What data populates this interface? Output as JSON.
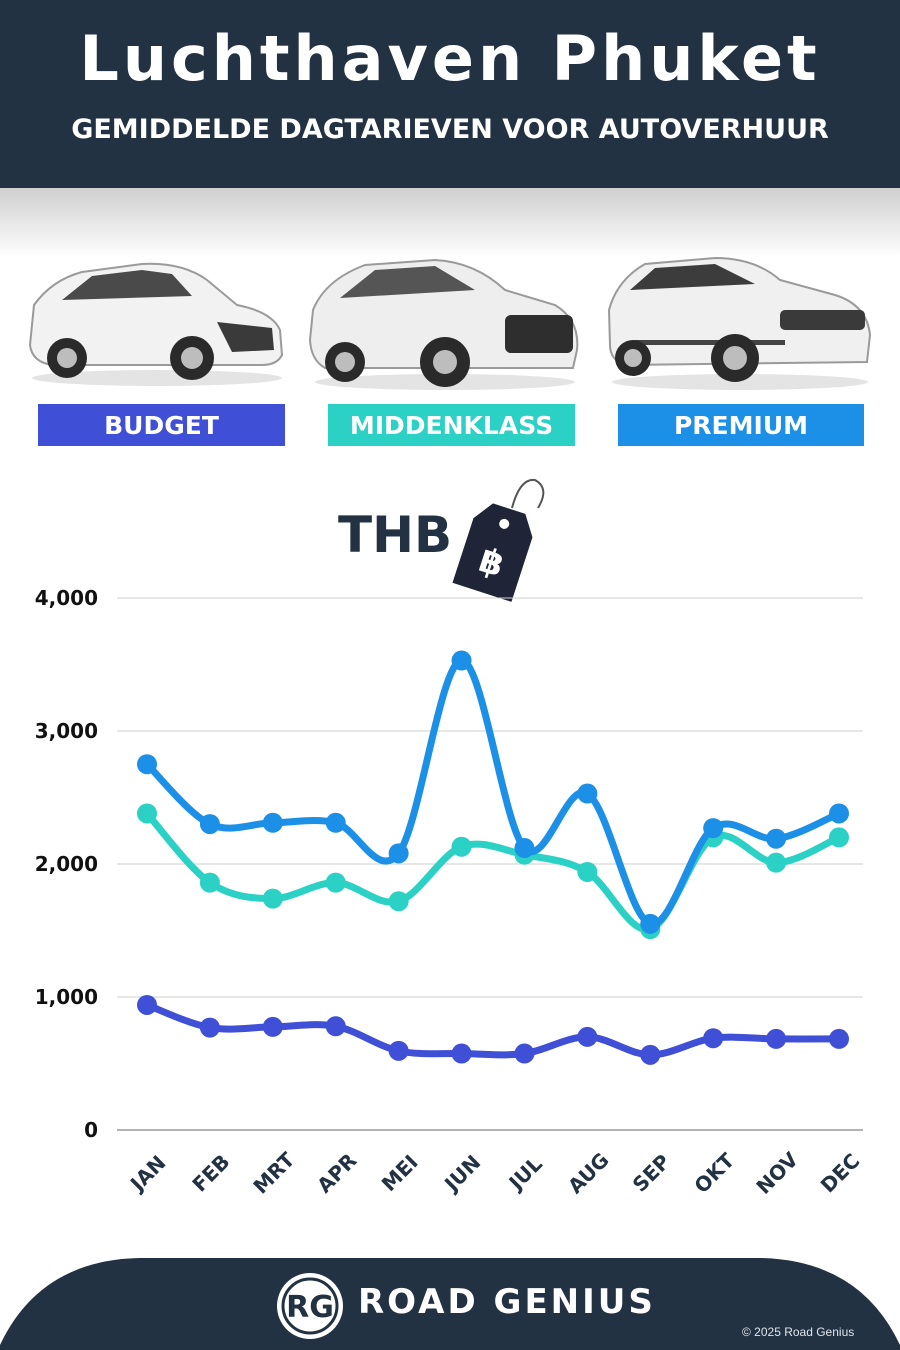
{
  "header": {
    "title": "Luchthaven Phuket",
    "subtitle": "GEMIDDELDE DAGTARIEVEN VOOR AUTOVERHUUR"
  },
  "categories_badges": [
    {
      "label": "BUDGET",
      "color": "#3f4fd6"
    },
    {
      "label": "MIDDENKLASS",
      "color": "#2bd1c4"
    },
    {
      "label": "PREMIUM",
      "color": "#1c8fe6"
    }
  ],
  "currency": {
    "label": "THB",
    "icon": "baht-price-tag-icon",
    "symbol": "฿"
  },
  "chart_data": {
    "type": "line",
    "categories": [
      "JAN",
      "FEB",
      "MRT",
      "APR",
      "MEI",
      "JUN",
      "JUL",
      "AUG",
      "SEP",
      "OKT",
      "NOV",
      "DEC"
    ],
    "series": [
      {
        "name": "BUDGET",
        "color": "#3f4fd6",
        "values": [
          940,
          770,
          775,
          780,
          595,
          575,
          575,
          700,
          565,
          690,
          685,
          685
        ]
      },
      {
        "name": "MIDDENKLASS",
        "color": "#2bd1c4",
        "values": [
          2380,
          1860,
          1740,
          1860,
          1720,
          2130,
          2070,
          1940,
          1510,
          2200,
          2010,
          2200
        ]
      },
      {
        "name": "PREMIUM",
        "color": "#1c8fe6",
        "values": [
          2750,
          2300,
          2310,
          2310,
          2080,
          3530,
          2120,
          2530,
          1550,
          2270,
          2190,
          2380
        ]
      }
    ],
    "yticks": [
      "0",
      "1,000",
      "2,000",
      "3,000",
      "4,000"
    ],
    "ylim": [
      0,
      4000
    ],
    "grid": true
  },
  "footer": {
    "brand": "ROAD GENIUS",
    "logo_text": "RG",
    "copyright": "© 2025 Road Genius",
    "bg_color": "#223243"
  }
}
